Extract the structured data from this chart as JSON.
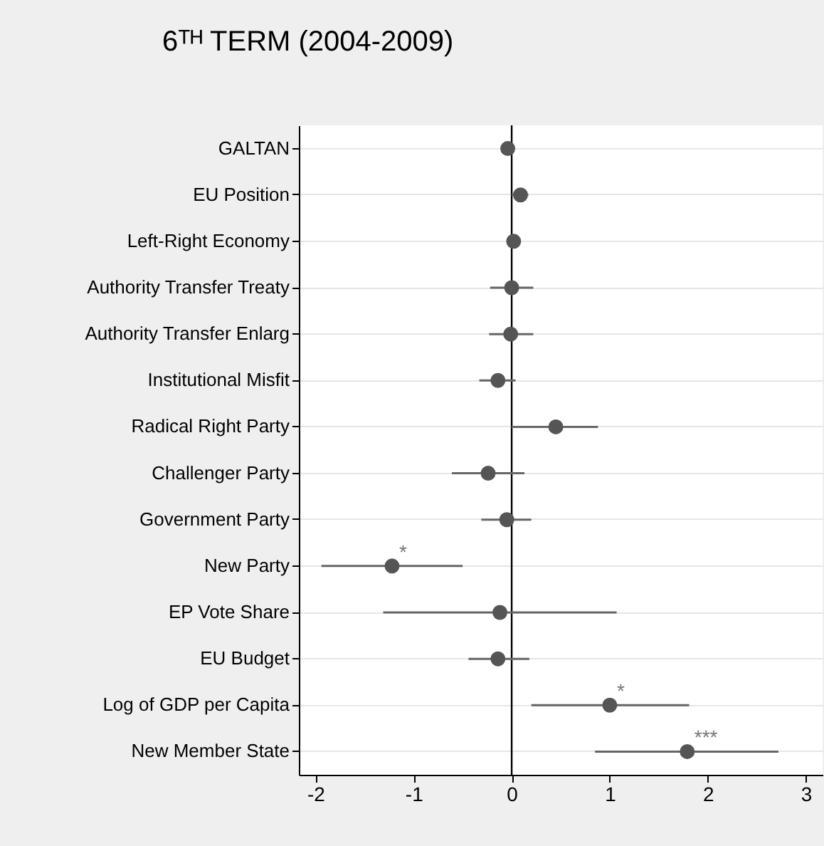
{
  "chart_data": {
    "type": "scatter",
    "title": "6ᵀᴴ TERM (2004-2009)",
    "orientation": "horizontal",
    "categories": [
      "GALTAN",
      "EU Position",
      "Left-Right Economy",
      "Authority Transfer Treaty",
      "Authority Transfer Enlarg",
      "Institutional Misfit",
      "Radical Right Party",
      "Challenger Party",
      "Government Party",
      "New Party",
      "EP Vote Share",
      "EU Budget",
      "Log of GDP per Capita",
      "New Member State"
    ],
    "series": [
      {
        "color": "#555555",
        "values": [
          -0.04,
          0.09,
          0.02,
          0.0,
          -0.01,
          -0.14,
          0.45,
          -0.24,
          -0.05,
          -1.22,
          -0.12,
          -0.14,
          1.0,
          1.79
        ],
        "errors": [
          null,
          [
            0.0,
            0.17
          ],
          null,
          [
            -0.22,
            0.22
          ],
          [
            -0.23,
            0.22
          ],
          [
            -0.33,
            0.04
          ],
          [
            0.0,
            0.88
          ],
          [
            -0.61,
            0.13
          ],
          [
            -0.31,
            0.2
          ],
          [
            -1.94,
            -0.5
          ],
          [
            -1.31,
            1.07
          ],
          [
            -0.44,
            0.18
          ],
          [
            0.2,
            1.81
          ],
          [
            0.85,
            2.72
          ]
        ]
      }
    ],
    "xlim": [
      -2.17,
      3.17
    ],
    "xticks": [
      -2,
      -1,
      0,
      1,
      2,
      3
    ],
    "ref_lines": [
      {
        "axis": "x",
        "value": 0,
        "color": "#000000"
      }
    ],
    "annotations": [
      {
        "text": "*",
        "x": -1.22,
        "y": "New Party"
      },
      {
        "text": "*",
        "x": 1.0,
        "y": "Log of GDP per Capita"
      },
      {
        "text": "***",
        "x": 1.79,
        "y": "New Member State"
      }
    ],
    "grid": "y",
    "marker": "circle"
  }
}
